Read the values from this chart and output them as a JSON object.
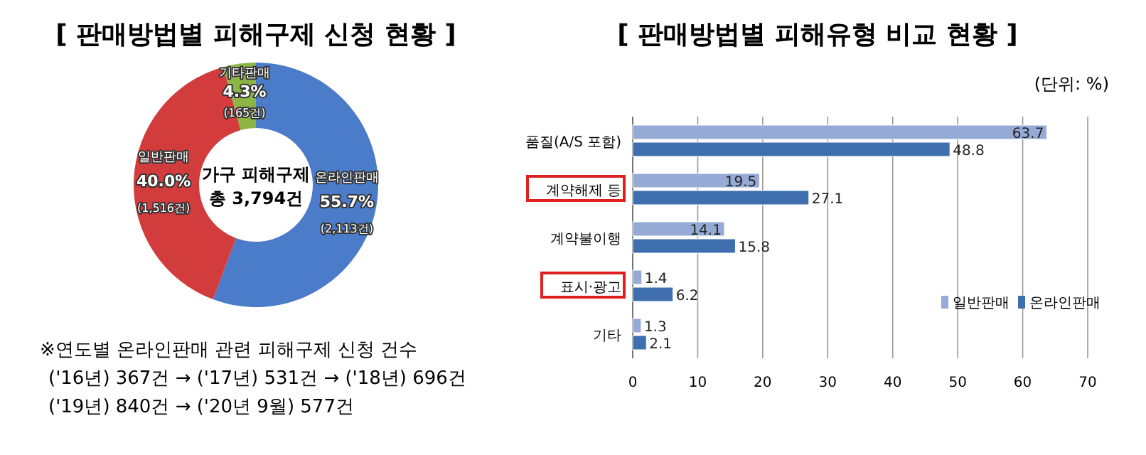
{
  "chart_data": [
    {
      "type": "donut",
      "title": "[ 판매방법별 피해구제 신청 현황 ]",
      "categories": [
        "온라인판매",
        "일반판매",
        "기타판매"
      ],
      "values": [
        55.7,
        40.0,
        4.3
      ],
      "colors": [
        "#4a7cc9",
        "#d23c3c",
        "#8cb546"
      ],
      "value_labels": [
        "55.7%\n(2,113건)",
        "40.0%\n(1,516건)",
        "4.3%\n(165건)"
      ],
      "annotations": [
        "가구 피해구제\n총 3,794건",
        "※연도별 온라인판매 관련 피해구제 신청 건수",
        "('16년) 367건 → ('17년) 531건 → ('18년) 696건",
        "('19년) 840건 → ('20년 9월) 577건"
      ],
      "legend": false
    },
    {
      "type": "bar",
      "orientation": "horizontal",
      "title": "[ 판매방법별 피해유형 비교 현황 ]",
      "categories": [
        "품질(A/S 포함)",
        "계약해제 등",
        "계약불이행",
        "표시·광고",
        "기타"
      ],
      "series": [
        {
          "name": "일반판매",
          "color": "#95abd6",
          "values": [
            63.7,
            19.5,
            14.1,
            1.4,
            1.3
          ]
        },
        {
          "name": "온라인판매",
          "color": "#3f6eae",
          "values": [
            48.8,
            27.1,
            15.8,
            6.2,
            2.1
          ]
        }
      ],
      "xlim": [
        0,
        70
      ],
      "xticks": [
        0,
        10,
        20,
        30,
        40,
        50,
        60,
        70
      ],
      "grid": "x",
      "data_labels": true,
      "legend": "right",
      "annotations": [
        "(단위: %)"
      ]
    }
  ]
}
